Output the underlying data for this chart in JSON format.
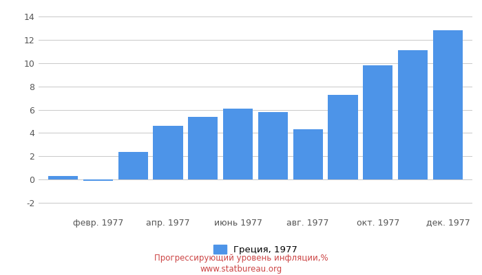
{
  "x_tick_labels": [
    "февр. 1977",
    "апр. 1977",
    "июнь 1977",
    "авг. 1977",
    "окт. 1977",
    "дек. 1977"
  ],
  "x_tick_positions": [
    1,
    3,
    5,
    7,
    9,
    11
  ],
  "values": [
    0.3,
    -0.1,
    2.4,
    4.6,
    5.4,
    6.1,
    5.8,
    4.3,
    7.3,
    9.8,
    11.1,
    12.8
  ],
  "bar_color": "#4d94e8",
  "ylim": [
    -3,
    14
  ],
  "yticks": [
    -2,
    0,
    2,
    4,
    6,
    8,
    10,
    12,
    14
  ],
  "legend_label": "Греция, 1977",
  "footer_line1": "Прогрессирующий уровень инфляции,%",
  "footer_line2": "www.statbureau.org",
  "grid_color": "#c8c8c8",
  "background_color": "#ffffff",
  "bar_width": 0.85,
  "text_color_axis": "#555555",
  "footer_color": "#cc4444",
  "fig_width": 7.0,
  "fig_height": 4.0,
  "dpi": 100
}
